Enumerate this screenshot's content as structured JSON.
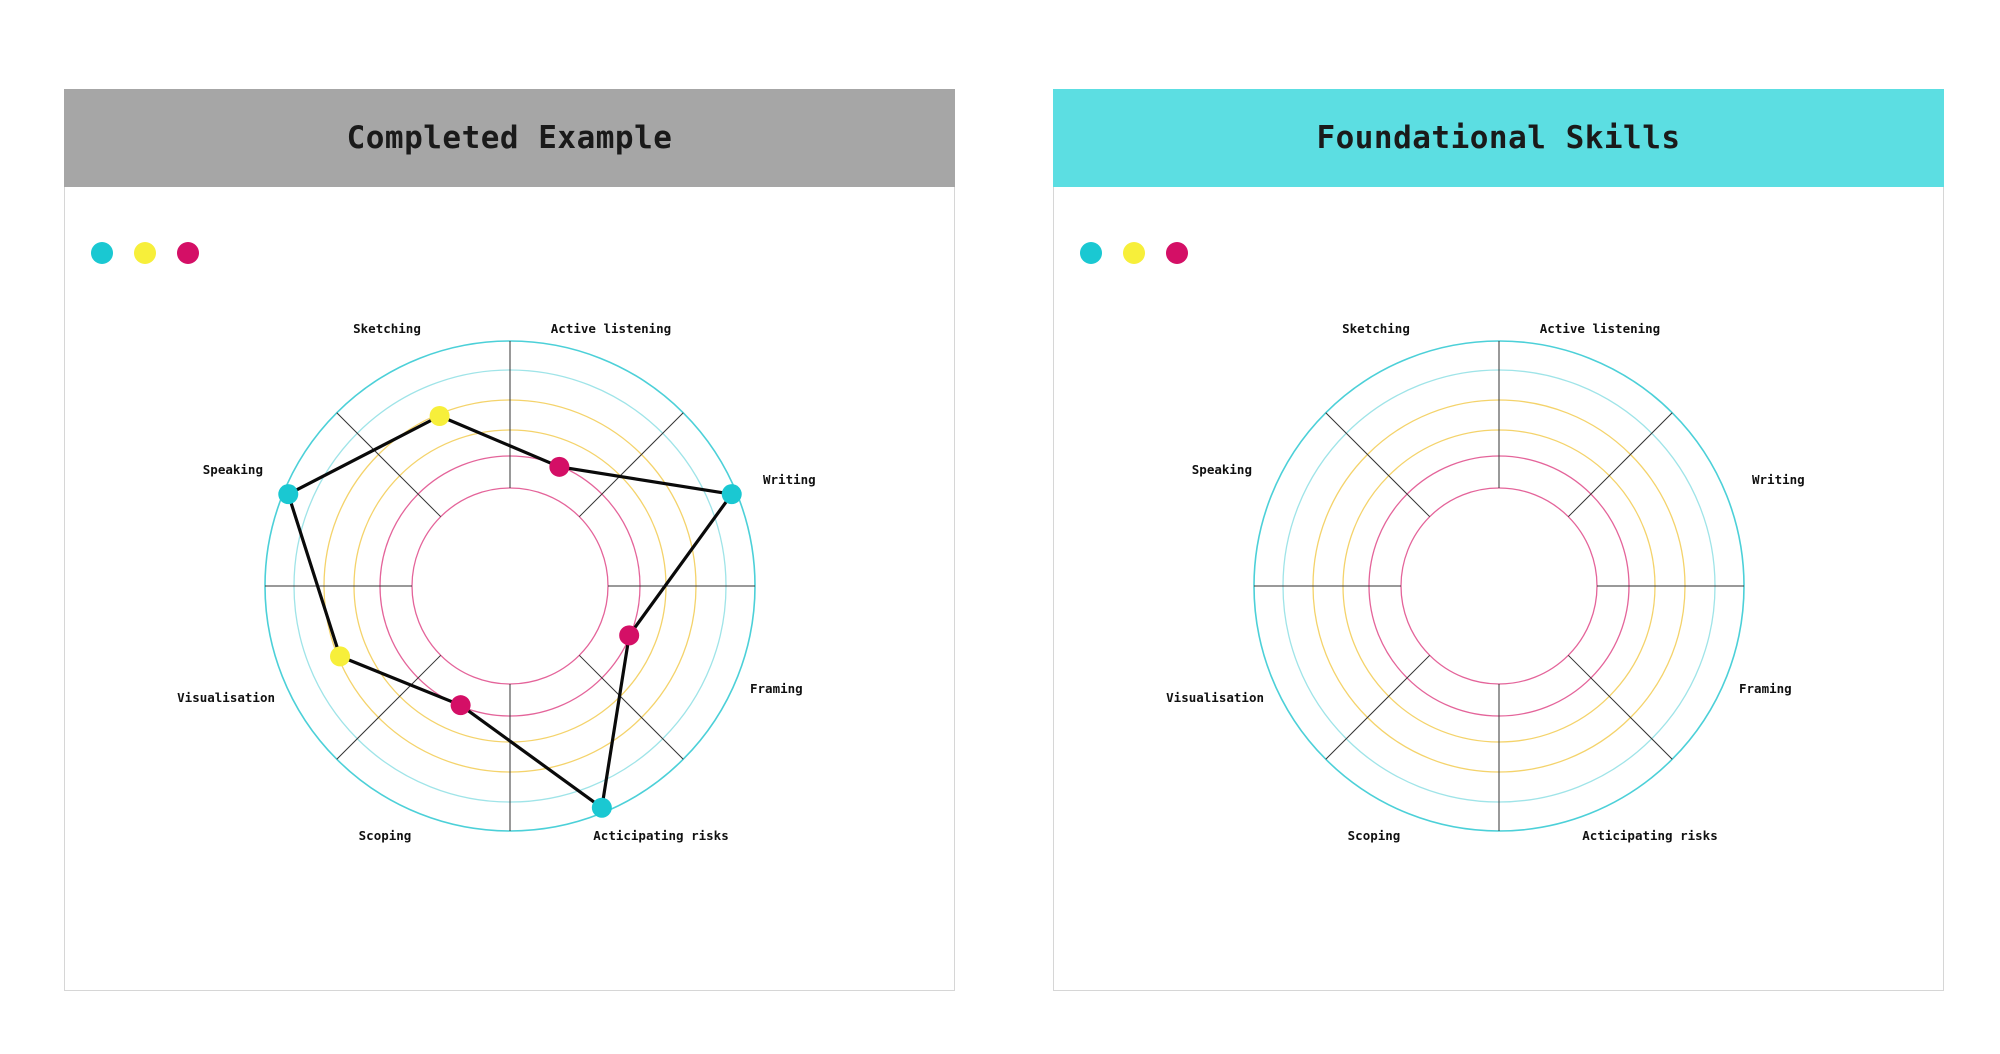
{
  "panels": [
    {
      "id": "left",
      "title": "Completed Example",
      "header_color": "#a6a6a6"
    },
    {
      "id": "right",
      "title": "Foundational Skills",
      "header_color": "#5cdee2"
    }
  ],
  "colors": {
    "legend": [
      "#1ac8d2",
      "#f7ef3a",
      "#d40f66"
    ],
    "ring_pink": "#e4649a",
    "ring_yellow": "#f4d36b",
    "ring_cyan_light": "#9fe4e8",
    "ring_cyan": "#4cd0d8",
    "spoke": "#333333",
    "path": "#0a0a0a"
  },
  "skills": [
    {
      "label": "Active listening"
    },
    {
      "label": "Writing"
    },
    {
      "label": "Framing"
    },
    {
      "label": "Acticipating risks"
    },
    {
      "label": "Scoping"
    },
    {
      "label": "Visualisation"
    },
    {
      "label": "Speaking"
    },
    {
      "label": "Sketching"
    }
  ],
  "example_ratings": [
    {
      "skill": "Active listening",
      "level": 2,
      "color": "#d40f66"
    },
    {
      "skill": "Writing",
      "level": 6,
      "color": "#1ac8d2"
    },
    {
      "skill": "Framing",
      "level": 2,
      "color": "#d40f66"
    },
    {
      "skill": "Acticipating risks",
      "level": 6,
      "color": "#1ac8d2"
    },
    {
      "skill": "Scoping",
      "level": 2,
      "color": "#d40f66"
    },
    {
      "skill": "Visualisation",
      "level": 4,
      "color": "#f7ef3a"
    },
    {
      "skill": "Speaking",
      "level": 6,
      "color": "#1ac8d2"
    },
    {
      "skill": "Sketching",
      "level": 4,
      "color": "#f7ef3a"
    }
  ]
}
